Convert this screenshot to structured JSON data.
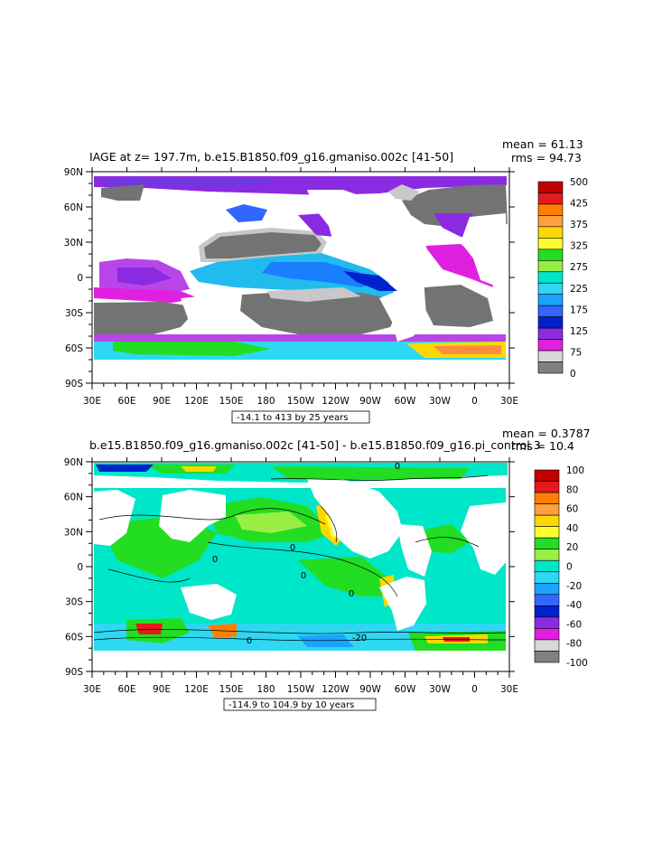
{
  "chart_data": [
    {
      "type": "heatmap",
      "title": "IAGE at z= 197.7m, b.e15.B1850.f09_g16.gmaniso.002c [41-50]",
      "mean_text": "mean = 61.13",
      "rms_text": "rms = 94.73",
      "x_tick_labels": [
        "30E",
        "60E",
        "90E",
        "120E",
        "150E",
        "180",
        "150W",
        "120W",
        "90W",
        "60W",
        "30W",
        "0",
        "30E"
      ],
      "y_tick_labels": [
        "90N",
        "60N",
        "30N",
        "0",
        "30S",
        "60S",
        "90S"
      ],
      "xlim": [
        30,
        390
      ],
      "ylim": [
        -90,
        90
      ],
      "range_note": "-14.1 to 413 by 25 years",
      "colorbar_labels": [
        "500",
        "425",
        "375",
        "325",
        "275",
        "225",
        "175",
        "125",
        "75",
        "0"
      ],
      "colorbar_colors": [
        "#c00000",
        "#e41a1c",
        "#ff7f00",
        "#ffa040",
        "#ffd700",
        "#ffff30",
        "#22dd22",
        "#99ee44",
        "#00e6c8",
        "#2fd8f2",
        "#1aa3ff",
        "#3366ff",
        "#0022cc",
        "#8a2be2",
        "#e020e0",
        "#d8d8d8",
        "#808080"
      ],
      "fill_colors": {
        "land": "#ffffff",
        "mask_dark": "#737373",
        "mask_light": "#c8c8c8"
      }
    },
    {
      "type": "heatmap",
      "title": "b.e15.B1850.f09_g16.gmaniso.002c [41-50] - b.e15.B1850.f09_g16.pi_control.3",
      "mean_text": "mean = 0.3787",
      "rms_text": "rms = 10.4",
      "x_tick_labels": [
        "30E",
        "60E",
        "90E",
        "120E",
        "150E",
        "180",
        "150W",
        "120W",
        "90W",
        "60W",
        "30W",
        "0",
        "30E"
      ],
      "y_tick_labels": [
        "90N",
        "60N",
        "30N",
        "0",
        "30S",
        "60S",
        "90S"
      ],
      "xlim": [
        30,
        390
      ],
      "ylim": [
        -90,
        90
      ],
      "range_note": "-114.9 to 104.9 by 10 years",
      "colorbar_labels": [
        "100",
        "80",
        "60",
        "40",
        "20",
        "0",
        "-20",
        "-40",
        "-60",
        "-80",
        "-100"
      ],
      "colorbar_colors": [
        "#c00000",
        "#e41a1c",
        "#ff7f00",
        "#ffa040",
        "#ffd700",
        "#ffff30",
        "#22dd22",
        "#99ee44",
        "#00e6c8",
        "#2fd8f2",
        "#1aa3ff",
        "#3366ff",
        "#0022cc",
        "#8a2be2",
        "#e020e0",
        "#d8d8d8",
        "#808080"
      ],
      "contour_labels": [
        "0",
        "0",
        "0",
        "0",
        "-20",
        "0",
        "0"
      ]
    }
  ]
}
